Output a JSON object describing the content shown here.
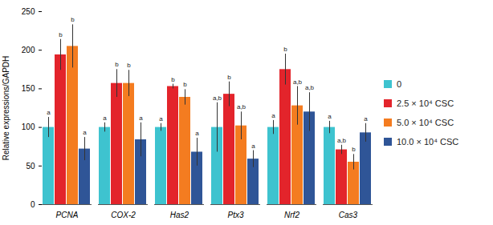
{
  "chart_data": {
    "type": "bar",
    "y_label": "Relative expressions/GAPDH",
    "categories": [
      "PCNA",
      "COX-2",
      "Has2",
      "Ptx3",
      "Nrf2",
      "Cas3"
    ],
    "series": [
      {
        "name": "0",
        "color": "#3ec3cf",
        "values": [
          100,
          100,
          100,
          100,
          100,
          100
        ],
        "errors": [
          13,
          6,
          5,
          32,
          9,
          8
        ],
        "letters": [
          "a",
          "a",
          "a",
          "a,b",
          "a",
          "a"
        ]
      },
      {
        "name": "2.5 × 10⁴ CSC",
        "color": "#e3242b",
        "values": [
          194,
          157,
          153,
          143,
          175,
          71
        ],
        "errors": [
          20,
          18,
          3,
          16,
          20,
          6
        ],
        "letters": [
          "b",
          "b",
          "b",
          "b",
          "b",
          "a,b"
        ]
      },
      {
        "name": "5.0 × 10⁴ CSC",
        "color": "#f47c20",
        "values": [
          205,
          157,
          139,
          102,
          128,
          55
        ],
        "errors": [
          28,
          17,
          10,
          18,
          25,
          10
        ],
        "letters": [
          "b",
          "b",
          "b",
          "a,b",
          "a,b",
          "b"
        ]
      },
      {
        "name": "10.0 × 10⁴ CSC",
        "color": "#2f5597",
        "values": [
          72,
          84,
          68,
          59,
          120,
          93
        ],
        "errors": [
          15,
          22,
          18,
          11,
          25,
          12
        ],
        "letters": [
          "a",
          "a",
          "a",
          "a",
          "a,b",
          "a"
        ]
      }
    ],
    "ylim": [
      0,
      250
    ],
    "yticks": [
      0,
      50,
      100,
      150,
      200,
      250
    ],
    "grid": false,
    "legend": "right"
  }
}
